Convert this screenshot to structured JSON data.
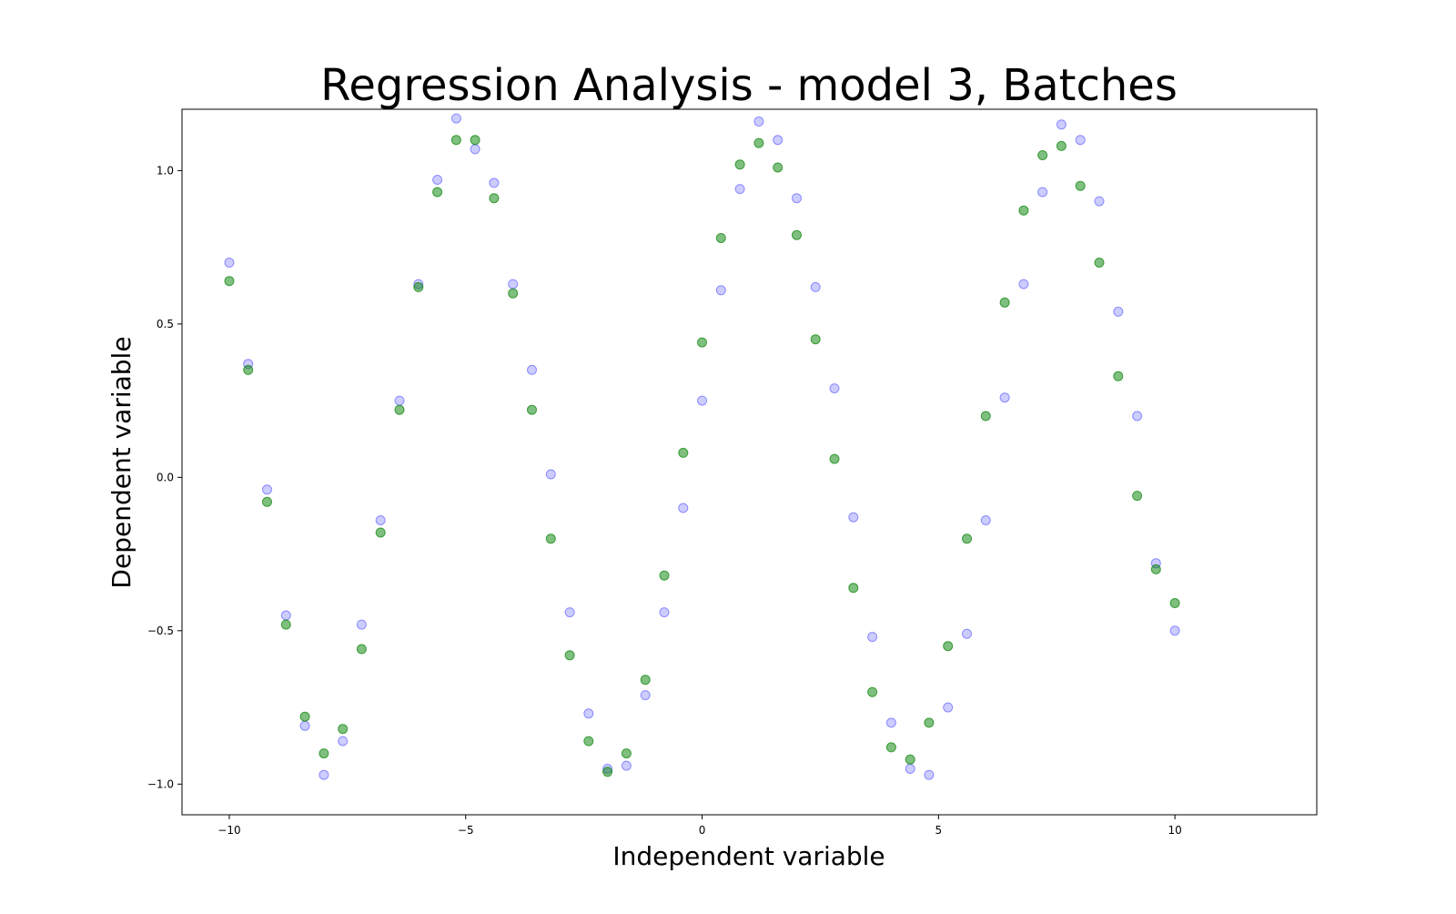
{
  "chart_data": {
    "type": "scatter",
    "title": "Regression Analysis - model 3, Batches",
    "xlabel": "Independent variable",
    "ylabel": "Dependent variable",
    "xlim": [
      -11,
      13
    ],
    "ylim": [
      -1.1,
      1.2
    ],
    "x_ticks": [
      -10,
      -5,
      0,
      5,
      10
    ],
    "x_tick_labels": [
      "−10",
      "−5",
      "0",
      "5",
      "10"
    ],
    "y_ticks": [
      -1.0,
      -0.5,
      0.0,
      0.5,
      1.0
    ],
    "y_tick_labels": [
      "−1.0",
      "−0.5",
      "0.0",
      "0.5",
      "1.0"
    ],
    "grid": false,
    "legend": "none",
    "colors": {
      "observed": "#0000ff",
      "fitted": "#008000"
    },
    "marker_alpha": {
      "observed": 0.2,
      "fitted": 0.5
    },
    "series": [
      {
        "kind": "observed",
        "x": [
          -10.0,
          -9.6,
          -9.2,
          -8.8,
          -8.4,
          -8.0,
          -7.6,
          -7.2,
          -6.8,
          -6.4,
          -6.0,
          -5.6,
          -5.2,
          -4.8,
          -4.4,
          -4.0,
          -3.6,
          -3.2,
          -2.8,
          -2.4,
          -2.0,
          -1.6,
          -1.2,
          -0.8,
          -0.4,
          0.0,
          0.4,
          0.8,
          1.2,
          1.6,
          2.0,
          2.4,
          2.8,
          3.2,
          3.6,
          4.0,
          4.4,
          4.8,
          5.2,
          5.6,
          6.0,
          6.4,
          6.8,
          7.2,
          7.6,
          8.0,
          8.4,
          8.8,
          9.2,
          9.6,
          10.0
        ],
        "y": [
          0.7,
          0.37,
          -0.04,
          -0.45,
          -0.81,
          -0.97,
          -0.86,
          -0.48,
          -0.14,
          0.25,
          0.63,
          0.97,
          1.17,
          1.07,
          0.96,
          0.63,
          0.35,
          0.01,
          -0.44,
          -0.77,
          -0.95,
          -0.94,
          -0.71,
          -0.44,
          -0.1,
          0.25,
          0.61,
          0.94,
          1.16,
          1.1,
          0.91,
          0.62,
          0.29,
          -0.13,
          -0.52,
          -0.8,
          -0.95,
          -0.97,
          -0.75,
          -0.51,
          -0.14,
          0.26,
          0.63,
          0.93,
          1.15,
          1.1,
          0.9,
          0.54,
          0.2,
          -0.28,
          -0.5
        ]
      },
      {
        "kind": "fitted",
        "x": [
          -10.0,
          -9.6,
          -9.2,
          -8.8,
          -8.4,
          -8.0,
          -7.6,
          -7.2,
          -6.8,
          -6.4,
          -6.0,
          -5.6,
          -5.2,
          -4.8,
          -4.4,
          -4.0,
          -3.6,
          -3.2,
          -2.8,
          -2.4,
          -2.0,
          -1.6,
          -1.2,
          -0.8,
          -0.4,
          0.0,
          0.4,
          0.8,
          1.2,
          1.6,
          2.0,
          2.4,
          2.8,
          3.2,
          3.6,
          4.0,
          4.4,
          4.8,
          5.2,
          5.6,
          6.0,
          6.4,
          6.8,
          7.2,
          7.6,
          8.0,
          8.4,
          8.8,
          9.2,
          9.6,
          10.0
        ],
        "y": [
          0.64,
          0.35,
          -0.08,
          -0.48,
          -0.78,
          -0.9,
          -0.82,
          -0.56,
          -0.18,
          0.22,
          0.62,
          0.93,
          1.1,
          1.1,
          0.91,
          0.6,
          0.22,
          -0.2,
          -0.58,
          -0.86,
          -0.96,
          -0.9,
          -0.66,
          -0.32,
          0.08,
          0.44,
          0.78,
          1.02,
          1.09,
          1.01,
          0.79,
          0.45,
          0.06,
          -0.36,
          -0.7,
          -0.88,
          -0.92,
          -0.8,
          -0.55,
          -0.2,
          0.2,
          0.57,
          0.87,
          1.05,
          1.08,
          0.95,
          0.7,
          0.33,
          -0.06,
          -0.3,
          -0.41
        ]
      }
    ]
  }
}
